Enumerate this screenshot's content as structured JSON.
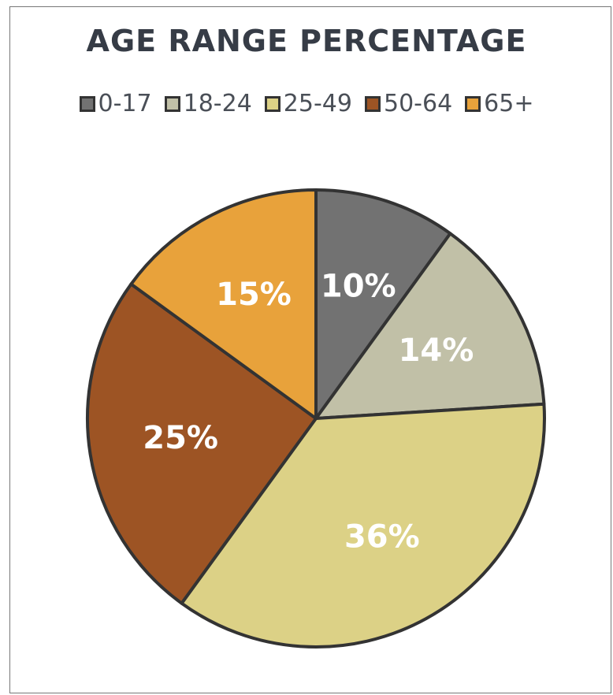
{
  "chart_data": {
    "type": "pie",
    "title": "AGE RANGE PERCENTAGE",
    "categories": [
      "0-17",
      "18-24",
      "25-49",
      "50-64",
      "65+"
    ],
    "values": [
      10,
      14,
      36,
      25,
      15
    ],
    "value_labels": [
      "10%",
      "14%",
      "36%",
      "25%",
      "15%"
    ],
    "colors": [
      "#727272",
      "#c1c0a7",
      "#dcd186",
      "#9d5424",
      "#e8a23b"
    ],
    "legend": "top"
  }
}
